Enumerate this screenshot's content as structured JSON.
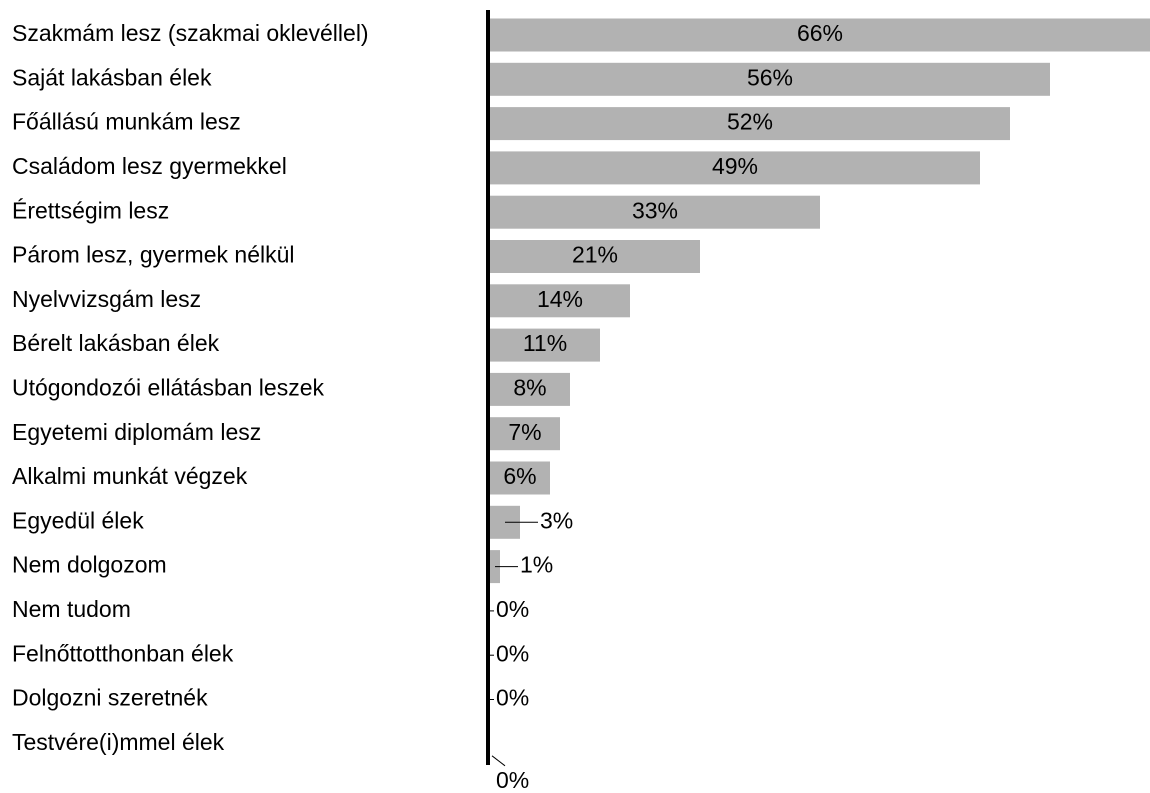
{
  "chart_data": {
    "type": "bar",
    "orientation": "horizontal",
    "color": "#b2b2b2",
    "categories": [
      "Szakmám lesz (szakmai oklevéllel)",
      "Saját lakásban élek",
      "Főállású munkám lesz",
      "Családom lesz gyermekkel",
      "Érettségim lesz",
      "Párom lesz, gyermek nélkül",
      "Nyelvvizsgám lesz",
      "Bérelt lakásban élek",
      "Utógondozói ellátásban leszek",
      "Egyetemi diplomám lesz",
      "Alkalmi munkát végzek",
      "Egyedül élek",
      "Nem dolgozom",
      "Nem tudom",
      "Felnőttotthonban élek",
      "Dolgozni szeretnék",
      "Testvére(i)mmel élek"
    ],
    "values": [
      66,
      56,
      52,
      49,
      33,
      21,
      14,
      11,
      8,
      7,
      6,
      3,
      1,
      0,
      0,
      0,
      0
    ],
    "value_labels": [
      "66%",
      "56%",
      "52%",
      "49%",
      "33%",
      "21%",
      "14%",
      "11%",
      "8%",
      "7%",
      "6%",
      "3%",
      "1%",
      "0%",
      "0%",
      "0%",
      "0%"
    ]
  }
}
